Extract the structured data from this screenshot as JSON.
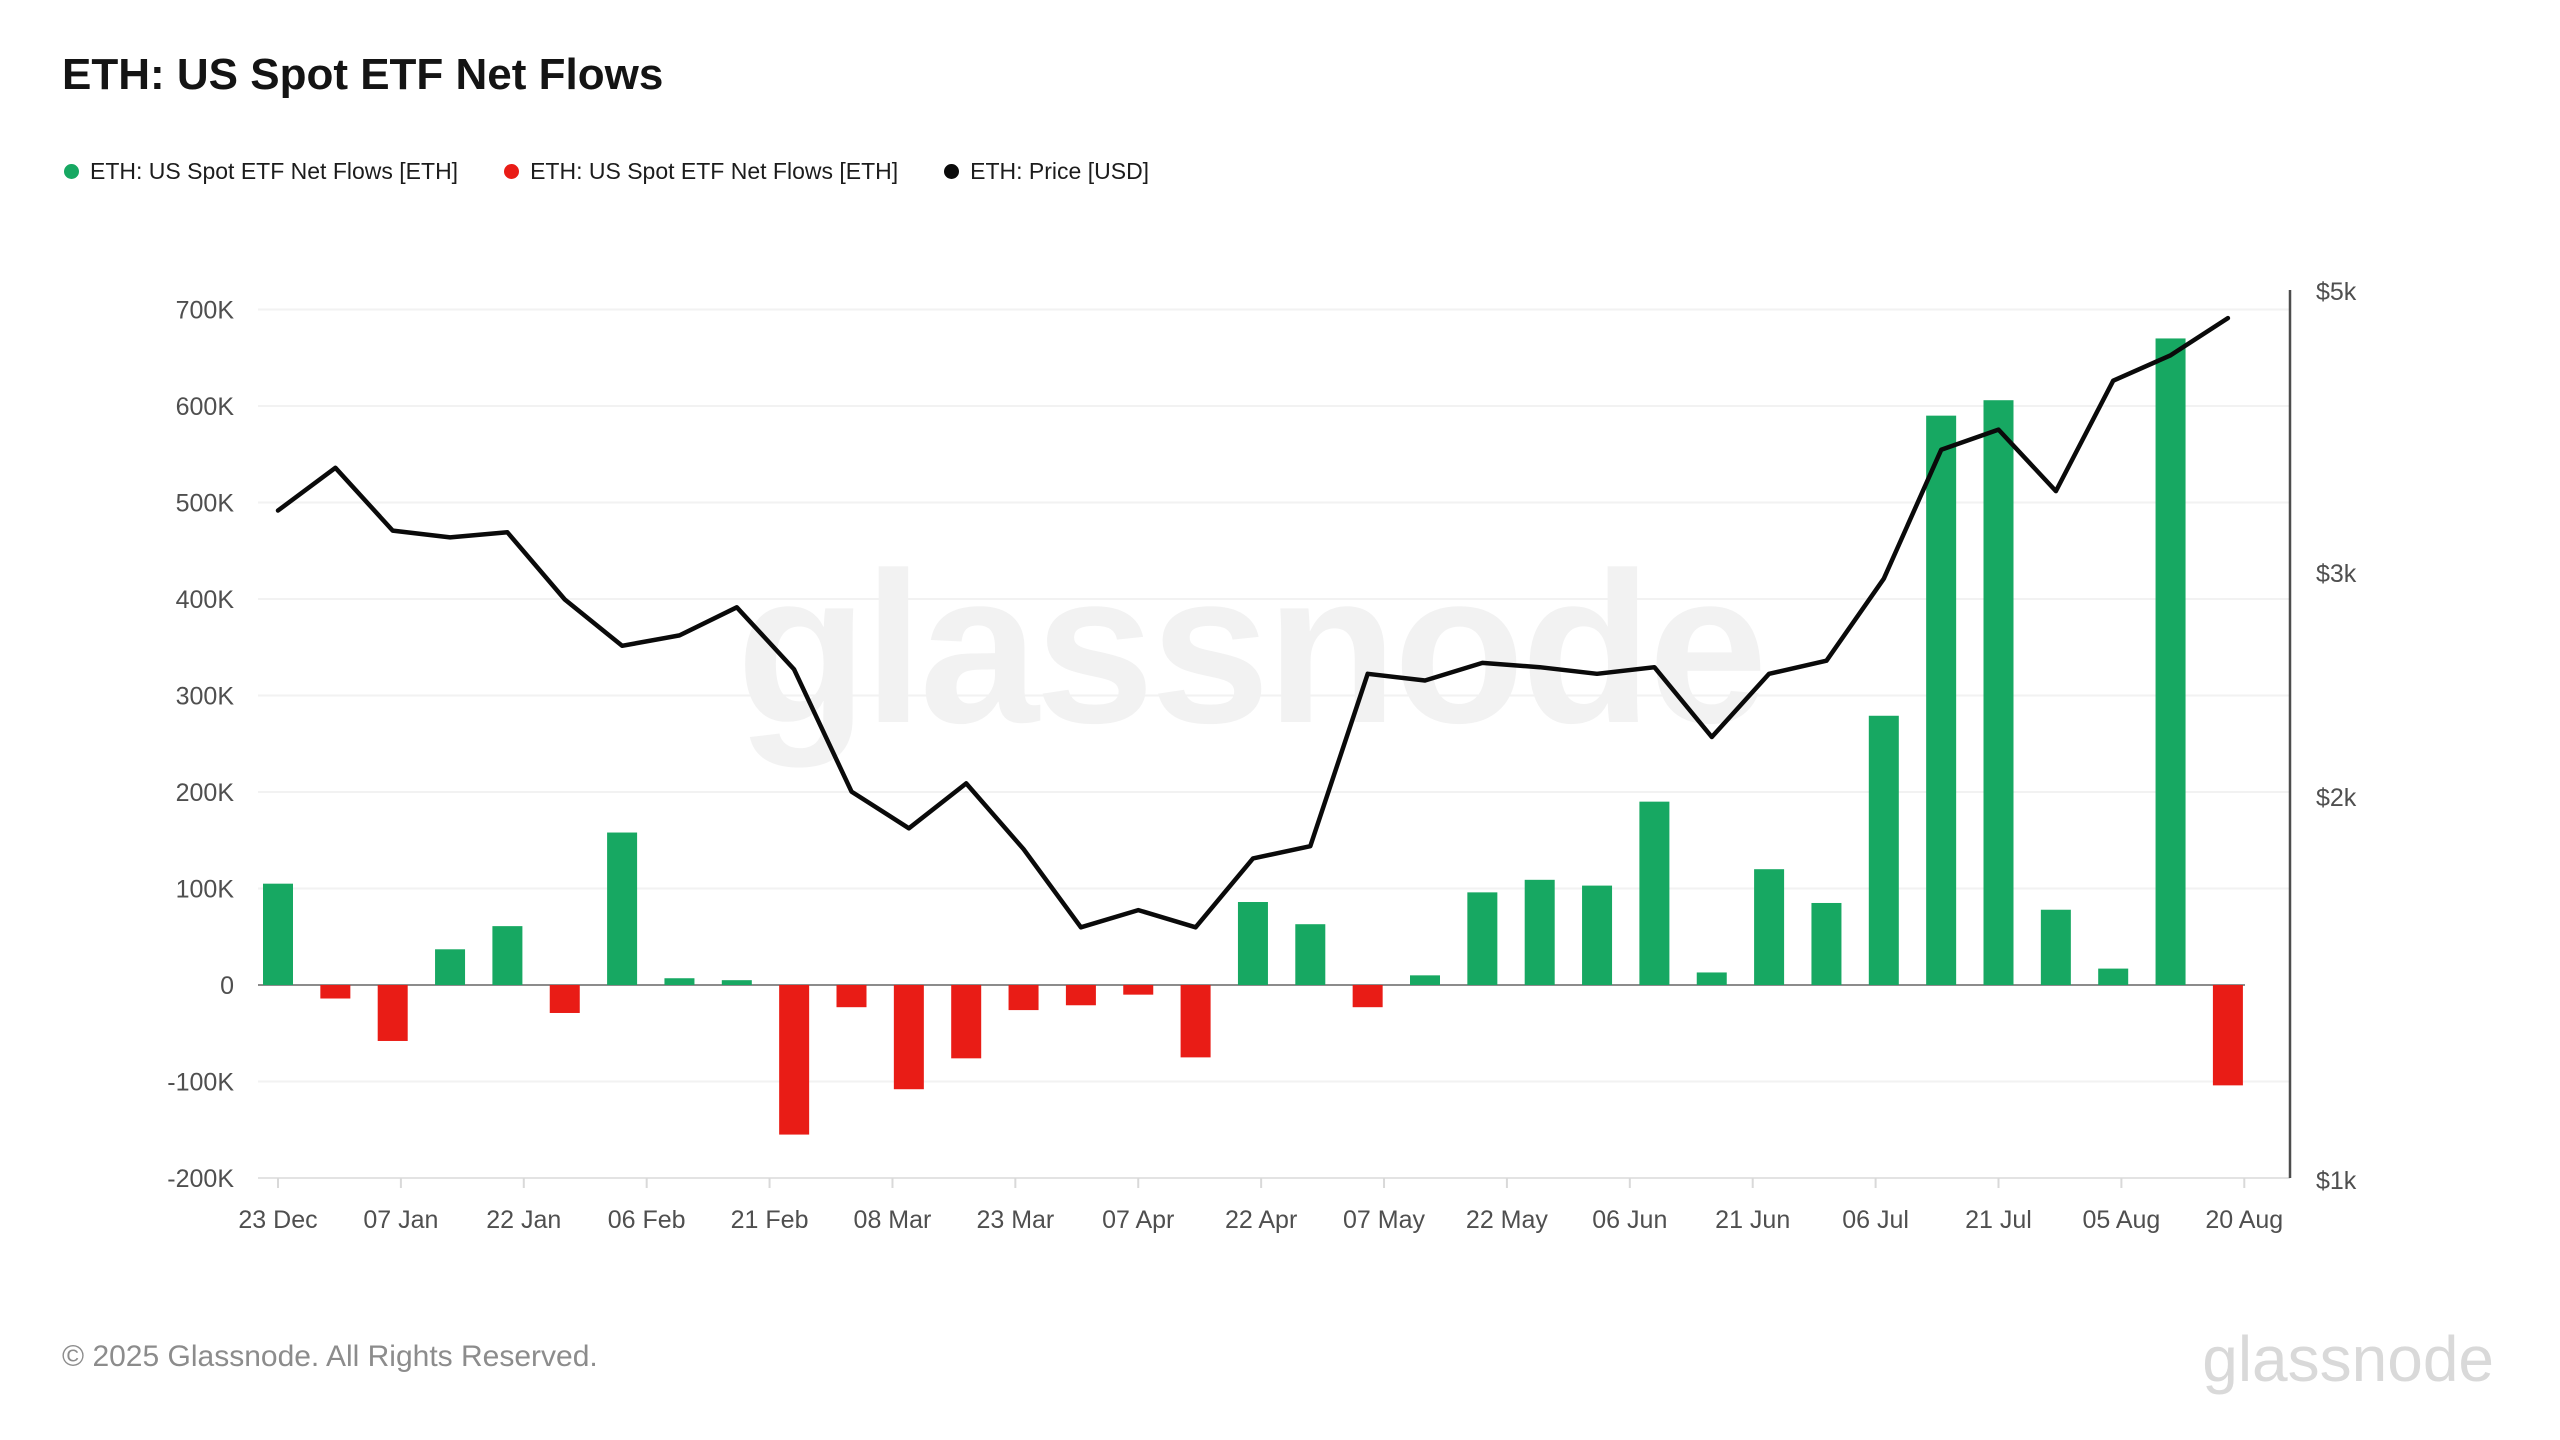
{
  "header": {
    "title": "ETH: US Spot ETF Net Flows"
  },
  "legend": {
    "items": [
      {
        "label": "ETH: US Spot ETF Net Flows [ETH]",
        "color": "#17a862",
        "marker": "circle"
      },
      {
        "label": "ETH: US Spot ETF Net Flows [ETH]",
        "color": "#e91c16",
        "marker": "circle"
      },
      {
        "label": "ETH: Price [USD]",
        "color": "#0a0a0a",
        "marker": "circle"
      }
    ]
  },
  "watermark": "glassnode",
  "footer": {
    "copyright": "© 2025 Glassnode. All Rights Reserved.",
    "logo": "glassnode"
  },
  "chart_data": {
    "type": "bar+line",
    "title": "ETH: US Spot ETF Net Flows",
    "legend_position": "top-left",
    "grid": true,
    "x_dates": [
      "2024-12-23",
      "2024-12-30",
      "2025-01-06",
      "2025-01-13",
      "2025-01-20",
      "2025-01-27",
      "2025-02-03",
      "2025-02-10",
      "2025-02-17",
      "2025-02-24",
      "2025-03-03",
      "2025-03-10",
      "2025-03-17",
      "2025-03-24",
      "2025-03-31",
      "2025-04-07",
      "2025-04-14",
      "2025-04-21",
      "2025-04-28",
      "2025-05-05",
      "2025-05-12",
      "2025-05-19",
      "2025-05-26",
      "2025-06-02",
      "2025-06-09",
      "2025-06-16",
      "2025-06-23",
      "2025-06-30",
      "2025-07-07",
      "2025-07-14",
      "2025-07-21",
      "2025-07-28",
      "2025-08-04",
      "2025-08-11",
      "2025-08-18"
    ],
    "x_tick_labels": [
      "23 Dec",
      "07 Jan",
      "22 Jan",
      "06 Feb",
      "21 Feb",
      "08 Mar",
      "23 Mar",
      "07 Apr",
      "22 Apr",
      "07 May",
      "22 May",
      "06 Jun",
      "21 Jun",
      "06 Jul",
      "21 Jul",
      "05 Aug",
      "20 Aug"
    ],
    "x_tick_day_offsets": [
      0,
      15,
      30,
      45,
      60,
      75,
      90,
      105,
      120,
      135,
      150,
      165,
      180,
      195,
      210,
      225,
      240
    ],
    "series": [
      {
        "name": "ETH: US Spot ETF Net Flows [ETH]",
        "type": "bar",
        "axis": "left",
        "color_positive": "#17a862",
        "color_negative": "#e91c16",
        "values": [
          105000,
          -14000,
          -58000,
          37000,
          61000,
          -29000,
          158000,
          7000,
          5000,
          -155000,
          -23000,
          -108000,
          -76000,
          -26000,
          -21000,
          -10000,
          -75000,
          86000,
          63000,
          -23000,
          10000,
          96000,
          109000,
          103000,
          190000,
          13000,
          120000,
          85000,
          279000,
          590000,
          606000,
          78000,
          17000,
          670000,
          -104000
        ]
      },
      {
        "name": "ETH: Price [USD]",
        "type": "line",
        "axis": "right",
        "color": "#0a0a0a",
        "values": [
          3360,
          3630,
          3240,
          3200,
          3230,
          2860,
          2630,
          2680,
          2820,
          2520,
          2020,
          1890,
          2050,
          1820,
          1580,
          1630,
          1580,
          1790,
          1830,
          2500,
          2470,
          2550,
          2530,
          2500,
          2530,
          2230,
          2500,
          2560,
          2970,
          3750,
          3890,
          3480,
          4250,
          4450,
          4760
        ]
      }
    ],
    "left_axis": {
      "title": "",
      "unit": "ETH",
      "tick_labels": [
        "700K",
        "600K",
        "500K",
        "400K",
        "300K",
        "200K",
        "100K",
        "0",
        "-100K",
        "-200K"
      ],
      "tick_values": [
        700000,
        600000,
        500000,
        400000,
        300000,
        200000,
        100000,
        0,
        -100000,
        -200000
      ],
      "range": [
        -200000,
        723000
      ],
      "scale": "linear"
    },
    "right_axis": {
      "title": "",
      "unit": "USD",
      "tick_labels": [
        "$5k",
        "$3k",
        "$2k",
        "$1k"
      ],
      "tick_values": [
        5000,
        3000,
        2000,
        1000
      ],
      "range": [
        990,
        5000
      ],
      "scale": "log"
    },
    "colors": {
      "positive": "#17a862",
      "negative": "#e91c16",
      "price_line": "#0a0a0a",
      "gridline": "#f2f2f2",
      "zero_line": "#8c8c8c",
      "right_axis_line": "#4d4d4d"
    }
  }
}
